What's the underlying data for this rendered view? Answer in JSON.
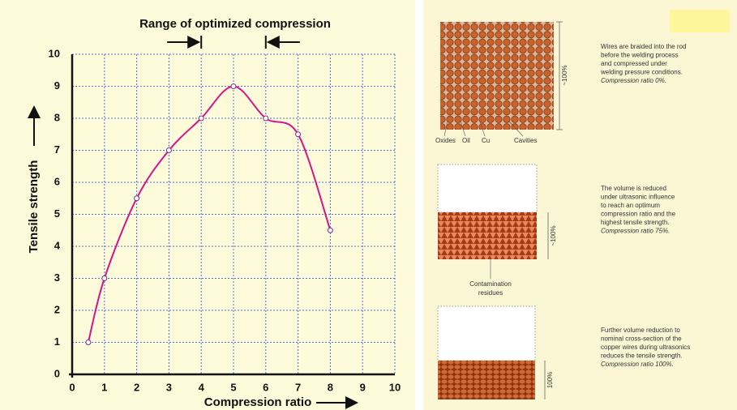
{
  "chart_data": {
    "type": "line",
    "title": "Range of optimized compression",
    "title_range": [
      4,
      6
    ],
    "x_label": "Compression ratio",
    "y_label": "Tensile strength",
    "series": [
      {
        "color": "#d4148c",
        "x": [
          0.5,
          1,
          2,
          3,
          4,
          5,
          6,
          7,
          8
        ],
        "values": [
          1,
          3,
          5.5,
          7,
          8,
          9,
          8,
          7.5,
          4.5
        ]
      }
    ],
    "xlim": [
      0,
      10
    ],
    "ylim": [
      0,
      10
    ],
    "xticks": [
      0,
      1,
      2,
      3,
      4,
      5,
      6,
      7,
      8,
      9,
      10
    ],
    "yticks": [
      0,
      1,
      2,
      3,
      4,
      5,
      6,
      7,
      8,
      9,
      10
    ],
    "grid": true
  },
  "diagram": {
    "stage1": {
      "labels": [
        "Oxides",
        "Oil",
        "Cu",
        "Cavities"
      ],
      "dimension": "~100%",
      "text": [
        "Wires are braided into the rod",
        "before the welding process",
        "and compressed under",
        "welding pressure conditions.",
        "Compression ratio 0%."
      ]
    },
    "stage2": {
      "label": [
        "Contamination",
        "residues"
      ],
      "dimension": "~100%",
      "text": [
        "The volume is reduced",
        "under ultrasonic influence",
        "to reach an optimum",
        "compression ratio and the",
        "highest tensile strength.",
        "Compression ratio 75%."
      ]
    },
    "stage3": {
      "dimension": "100%",
      "text": [
        "Further volume reduction to",
        "nominal cross-section of the",
        "copper wires during ultrasonics",
        "reduces the tensile strength.",
        "Compression ratio 100%."
      ]
    }
  }
}
